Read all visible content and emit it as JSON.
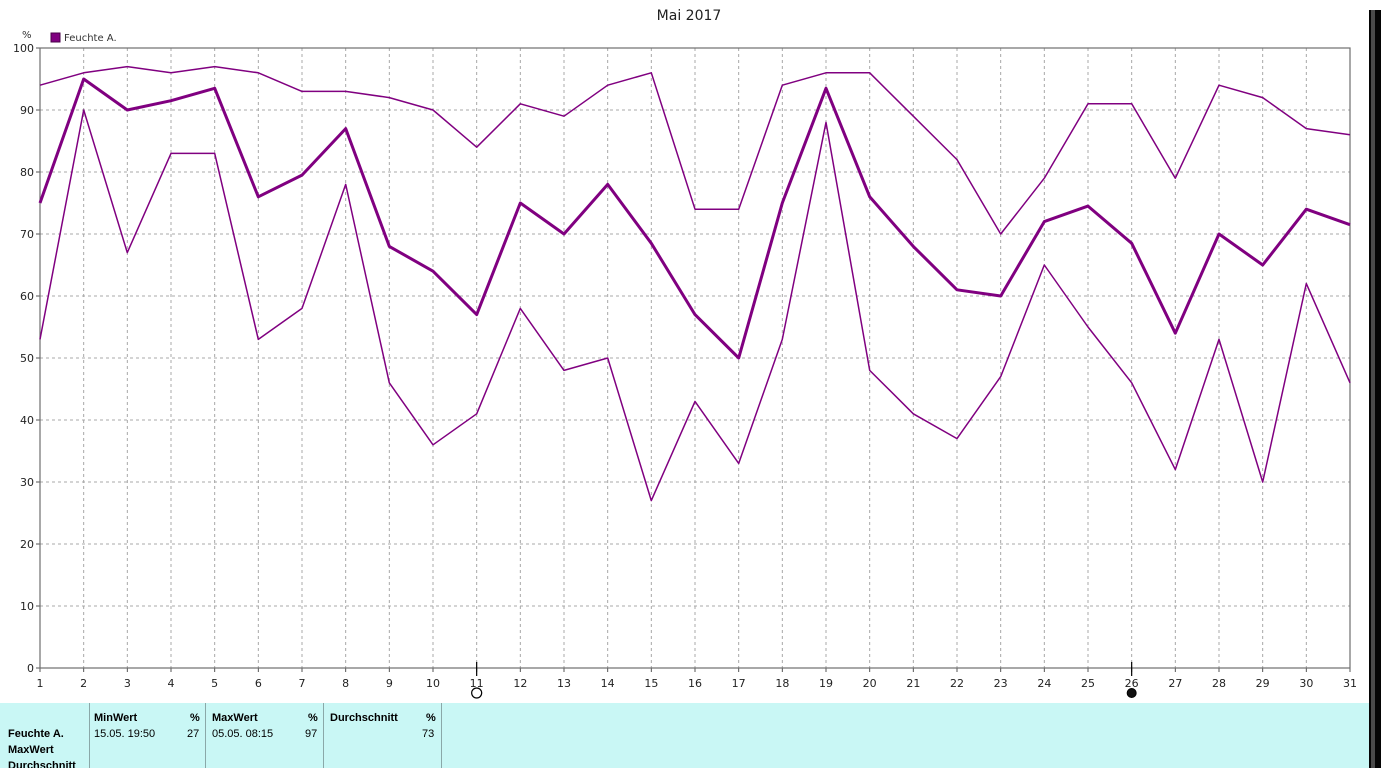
{
  "chart_data": {
    "type": "line",
    "title": "Mai 2017",
    "ylabel": "%",
    "ylim": [
      0,
      100
    ],
    "yticks": [
      0,
      10,
      20,
      30,
      40,
      50,
      60,
      70,
      80,
      90,
      100
    ],
    "grid": true,
    "legend": {
      "position": "top-left",
      "entries": [
        "Feuchte A."
      ]
    },
    "color": "#800080",
    "categories": [
      "1",
      "2",
      "3",
      "4",
      "5",
      "6",
      "7",
      "8",
      "9",
      "10",
      "11",
      "12",
      "13",
      "14",
      "15",
      "16",
      "17",
      "18",
      "19",
      "20",
      "21",
      "22",
      "23",
      "24",
      "25",
      "26",
      "27",
      "28",
      "29",
      "30",
      "31"
    ],
    "series": [
      {
        "name": "Feuchte A.",
        "role": "max",
        "width": 1.5,
        "values": [
          94,
          96,
          97,
          96,
          97,
          96,
          93,
          93,
          92,
          90,
          84,
          91,
          89,
          94,
          96,
          74,
          74,
          94,
          96,
          96,
          89,
          82,
          70,
          79,
          91,
          91,
          79,
          94,
          92,
          87,
          86
        ]
      },
      {
        "name": "Feuchte A.",
        "role": "avg",
        "width": 3,
        "values": [
          75,
          95,
          90,
          91.5,
          93.5,
          76,
          79.5,
          87,
          68,
          64,
          57,
          75,
          70,
          78,
          68.5,
          57,
          50,
          75,
          93.5,
          76,
          68,
          61,
          60,
          72,
          74.5,
          68.5,
          54,
          70,
          65,
          74,
          71.5
        ]
      },
      {
        "name": "Feuchte A.",
        "role": "min",
        "width": 1.5,
        "values": [
          53,
          90,
          67,
          83,
          83,
          53,
          58,
          78,
          46,
          36,
          41,
          58,
          48,
          50,
          27,
          43,
          33,
          53,
          88,
          48,
          41,
          37,
          47,
          65,
          55,
          46,
          32,
          53,
          30,
          62,
          46
        ]
      }
    ],
    "moon_markers": [
      {
        "day": "11",
        "phase": "new",
        "symbol": "○"
      },
      {
        "day": "26",
        "phase": "full",
        "symbol": "●"
      }
    ]
  },
  "stats": {
    "rows": [
      "Feuchte A.",
      "MaxWert",
      "Durchschnitt"
    ],
    "min": {
      "label": "MinWert",
      "unit": "%",
      "time": "15.05.  19:50",
      "value": "27"
    },
    "max": {
      "label": "MaxWert",
      "unit": "%",
      "time": "05.05.  08:15",
      "value": "97"
    },
    "avg": {
      "label": "Durchschnitt",
      "unit": "%",
      "value": "73"
    }
  }
}
